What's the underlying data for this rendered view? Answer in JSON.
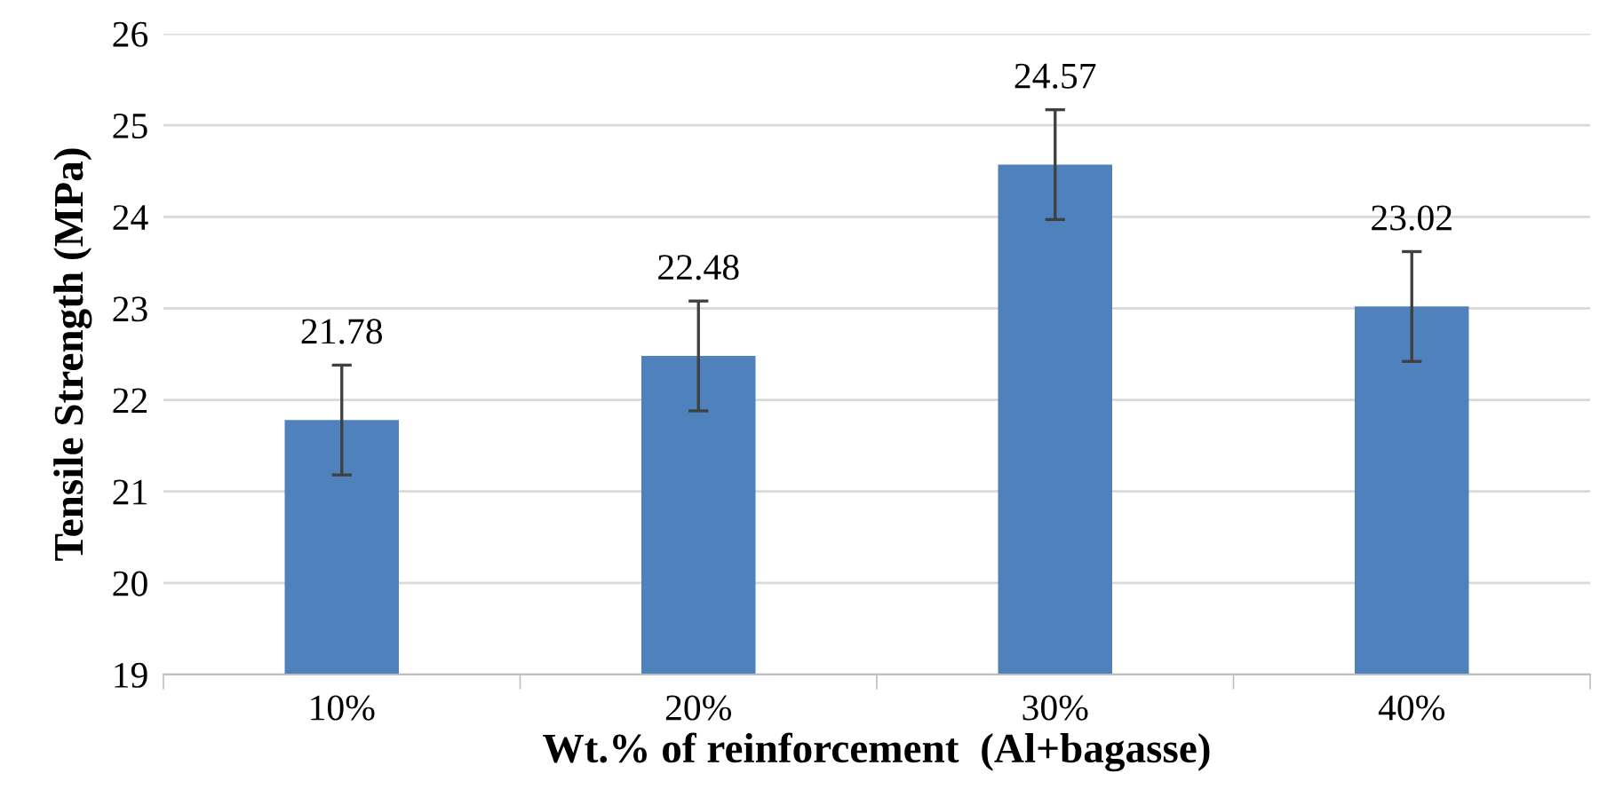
{
  "chart_data": {
    "type": "bar",
    "xlabel": "Wt.% of reinforcement  (Al+bagasse)",
    "ylabel": "Tensile Strength (MPa)",
    "categories": [
      "10%",
      "20%",
      "30%",
      "40%"
    ],
    "values": [
      21.78,
      22.48,
      24.57,
      23.02
    ],
    "errors": [
      0.6,
      0.6,
      0.6,
      0.6
    ],
    "color": "#4f81bd",
    "data_labels": true,
    "ylim": [
      19,
      26
    ],
    "yticks": [
      19,
      20,
      21,
      22,
      23,
      24,
      25,
      26
    ],
    "grid": "y",
    "legend": false
  }
}
